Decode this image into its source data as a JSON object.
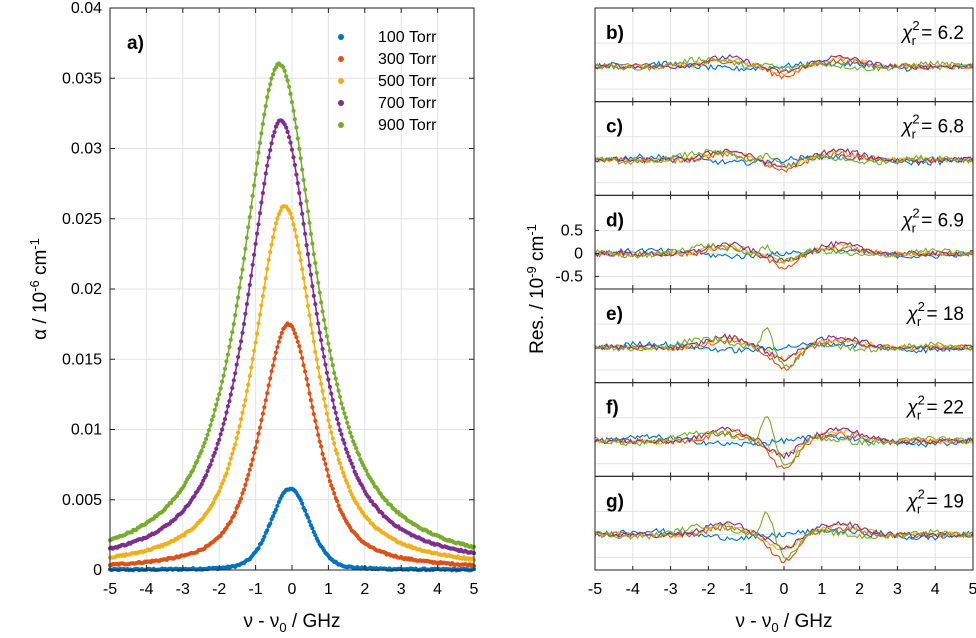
{
  "chart_data": [
    {
      "type": "scatter",
      "panel": "a)",
      "xlabel": "ν - ν₀ / GHz",
      "ylabel": "α / 10⁻⁶ cm⁻¹",
      "xlim": [
        -5,
        5
      ],
      "ylim": [
        0,
        0.04
      ],
      "xticks": [
        "-5",
        "-4",
        "-3",
        "-2",
        "-1",
        "0",
        "1",
        "2",
        "3",
        "4",
        "5"
      ],
      "yticks": [
        "0",
        "0.005",
        "0.01",
        "0.015",
        "0.02",
        "0.025",
        "0.03",
        "0.035",
        "0.04"
      ],
      "series": [
        {
          "name": "100 Torr",
          "color": "#0072BD",
          "peak": 0.0058,
          "center": -0.05,
          "hwhm": 0.62,
          "gauss": 0.75
        },
        {
          "name": "300 Torr",
          "color": "#D95319",
          "peak": 0.0175,
          "center": -0.1,
          "hwhm": 0.9,
          "gauss": 0.35
        },
        {
          "name": "500 Torr",
          "color": "#EDB120",
          "peak": 0.0259,
          "center": -0.2,
          "hwhm": 1.02,
          "gauss": 0.2
        },
        {
          "name": "700 Torr",
          "color": "#7E2F8E",
          "peak": 0.032,
          "center": -0.3,
          "hwhm": 1.12,
          "gauss": 0.12
        },
        {
          "name": "900 Torr",
          "color": "#77AC30",
          "peak": 0.036,
          "center": -0.35,
          "hwhm": 1.22,
          "gauss": 0.08
        }
      ]
    },
    {
      "type": "line",
      "xlabel": "ν - ν₀ / GHz",
      "ylabel": "Res. / 10⁻⁹ cm⁻¹",
      "xlim": [
        -5,
        5
      ],
      "xticks": [
        "-5",
        "-4",
        "-3",
        "-2",
        "-1",
        "0",
        "1",
        "2",
        "3",
        "4",
        "5"
      ],
      "residual_yticks": [
        "0.5",
        "0",
        "-0.5"
      ],
      "residual_ytick_values": [
        0.5,
        0,
        -0.5
      ],
      "series_names": [
        "100 Torr",
        "300 Torr",
        "500 Torr",
        "700 Torr",
        "900 Torr"
      ],
      "series_colors": [
        "#0072BD",
        "#D95319",
        "#EDB120",
        "#7E2F8E",
        "#77AC30"
      ],
      "panels": [
        {
          "label": "b)",
          "chi_prefix": "χ",
          "chi_sub": "r",
          "chi_sup": "2",
          "chi_value": "= 6.2",
          "scale": 0.9,
          "center_dip": 0.25,
          "green_wiggle": 0.15
        },
        {
          "label": "c)",
          "chi_prefix": "χ",
          "chi_sub": "r",
          "chi_sup": "2",
          "chi_value": "= 6.8",
          "scale": 0.95,
          "center_dip": 0.3,
          "green_wiggle": 0.25
        },
        {
          "label": "d)",
          "chi_prefix": "χ",
          "chi_sub": "r",
          "chi_sup": "2",
          "chi_value": "= 6.9",
          "scale": 0.95,
          "center_dip": 0.35,
          "green_wiggle": 0.35
        },
        {
          "label": "e)",
          "chi_prefix": "χ",
          "chi_sub": "r",
          "chi_sup": "2",
          "chi_value": "= 18",
          "scale": 1.05,
          "center_dip": 0.6,
          "green_wiggle": 0.9
        },
        {
          "label": "f)",
          "chi_prefix": "χ",
          "chi_sub": "r",
          "chi_sup": "2",
          "chi_value": "= 22",
          "scale": 1.2,
          "center_dip": 0.8,
          "green_wiggle": 1.1
        },
        {
          "label": "g)",
          "chi_prefix": "χ",
          "chi_sub": "r",
          "chi_sup": "2",
          "chi_value": "= 19",
          "scale": 1.15,
          "center_dip": 0.75,
          "green_wiggle": 1.0
        }
      ]
    }
  ]
}
